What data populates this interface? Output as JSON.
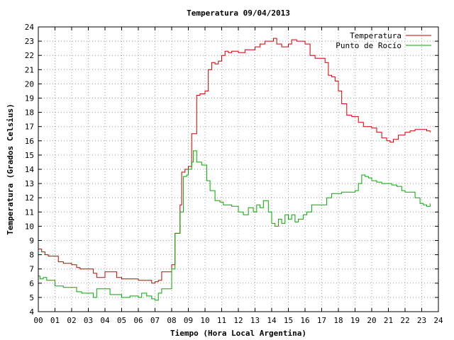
{
  "chart_data": {
    "type": "line",
    "title": "Temperatura 09/04/2013",
    "xlabel": "Tiempo (Hora Local Argentina)",
    "ylabel": "Temperatura (Grados Celsius)",
    "xlim": [
      0,
      24
    ],
    "ylim": [
      4,
      24
    ],
    "x_ticks": [
      0,
      1,
      2,
      3,
      4,
      5,
      6,
      7,
      8,
      9,
      10,
      11,
      12,
      13,
      14,
      15,
      16,
      17,
      18,
      19,
      20,
      21,
      22,
      23,
      24
    ],
    "x_tick_labels": [
      "00",
      "01",
      "02",
      "03",
      "04",
      "05",
      "06",
      "07",
      "08",
      "09",
      "10",
      "11",
      "12",
      "13",
      "14",
      "15",
      "16",
      "17",
      "18",
      "19",
      "20",
      "21",
      "22",
      "23",
      "24"
    ],
    "y_ticks": [
      4,
      5,
      6,
      7,
      8,
      9,
      10,
      11,
      12,
      13,
      14,
      15,
      16,
      17,
      18,
      19,
      20,
      21,
      22,
      23,
      24
    ],
    "grid": true,
    "legend_position": "top-right",
    "series": [
      {
        "name": "Temperatura",
        "color": "#cc0000",
        "x": [
          0,
          0.2,
          0.4,
          0.6,
          1.0,
          1.2,
          1.5,
          2.0,
          2.3,
          2.5,
          3.0,
          3.3,
          3.5,
          4.0,
          4.4,
          4.7,
          5.0,
          5.5,
          6.0,
          6.5,
          6.8,
          7.0,
          7.2,
          7.4,
          7.8,
          8.0,
          8.2,
          8.5,
          8.6,
          8.8,
          9.0,
          9.2,
          9.5,
          9.7,
          10.0,
          10.2,
          10.4,
          10.6,
          10.8,
          11.0,
          11.2,
          11.4,
          11.6,
          12.0,
          12.4,
          12.8,
          13.0,
          13.3,
          13.6,
          13.9,
          14.1,
          14.3,
          14.6,
          15.0,
          15.2,
          15.5,
          16.0,
          16.3,
          16.6,
          17.0,
          17.2,
          17.4,
          17.6,
          17.8,
          18.0,
          18.2,
          18.5,
          18.8,
          19.2,
          19.5,
          20.0,
          20.3,
          20.6,
          20.9,
          21.1,
          21.3,
          21.6,
          22.0,
          22.3,
          22.6,
          23.0,
          23.3,
          23.5
        ],
        "y": [
          8.4,
          8.2,
          8.0,
          7.9,
          7.9,
          7.5,
          7.4,
          7.3,
          7.1,
          7.0,
          7.0,
          6.7,
          6.4,
          6.8,
          6.8,
          6.4,
          6.3,
          6.3,
          6.2,
          6.2,
          6.0,
          6.1,
          6.2,
          6.8,
          6.8,
          7.3,
          9.5,
          11.5,
          13.8,
          14.0,
          14.2,
          16.5,
          19.2,
          19.3,
          19.5,
          21.0,
          21.5,
          21.4,
          21.6,
          22.0,
          22.3,
          22.2,
          22.3,
          22.2,
          22.4,
          22.4,
          22.6,
          22.8,
          23.0,
          23.0,
          23.2,
          22.8,
          22.6,
          22.8,
          23.1,
          23.0,
          22.8,
          22.0,
          21.8,
          21.8,
          21.5,
          20.6,
          20.5,
          20.2,
          19.5,
          18.6,
          17.8,
          17.7,
          17.3,
          17.0,
          16.9,
          16.6,
          16.2,
          16.0,
          15.9,
          16.1,
          16.4,
          16.6,
          16.7,
          16.8,
          16.8,
          16.7,
          16.6
        ]
      },
      {
        "name": "Punto de Rocío",
        "color": "#00aa00",
        "x": [
          0,
          0.1,
          0.3,
          0.5,
          1.0,
          1.2,
          1.5,
          2.0,
          2.3,
          2.6,
          3.0,
          3.3,
          3.5,
          4.0,
          4.3,
          4.6,
          5.0,
          5.3,
          5.5,
          6.0,
          6.2,
          6.5,
          6.8,
          7.0,
          7.2,
          7.4,
          7.8,
          8.0,
          8.2,
          8.5,
          8.7,
          8.9,
          9.0,
          9.2,
          9.3,
          9.5,
          9.8,
          10.0,
          10.1,
          10.3,
          10.6,
          10.9,
          11.1,
          11.3,
          11.6,
          12.0,
          12.3,
          12.6,
          12.9,
          13.1,
          13.3,
          13.5,
          13.8,
          14.0,
          14.2,
          14.4,
          14.6,
          14.8,
          15.0,
          15.2,
          15.4,
          15.6,
          15.9,
          16.1,
          16.4,
          16.7,
          17.0,
          17.3,
          17.6,
          17.9,
          18.2,
          18.5,
          18.8,
          19.0,
          19.2,
          19.4,
          19.6,
          19.8,
          20.0,
          20.3,
          20.6,
          20.9,
          21.2,
          21.5,
          21.8,
          22.0,
          22.3,
          22.6,
          22.9,
          23.1,
          23.3,
          23.5
        ],
        "y": [
          6.5,
          6.3,
          6.4,
          6.2,
          5.8,
          5.8,
          5.7,
          5.7,
          5.4,
          5.3,
          5.3,
          5.0,
          5.6,
          5.6,
          5.2,
          5.2,
          5.0,
          5.0,
          5.1,
          5.0,
          5.3,
          5.1,
          4.9,
          4.8,
          5.3,
          5.6,
          5.6,
          7.0,
          9.5,
          11.0,
          13.5,
          13.6,
          14.0,
          14.5,
          15.3,
          14.5,
          14.3,
          14.3,
          13.2,
          12.5,
          11.8,
          11.7,
          11.5,
          11.5,
          11.4,
          11.0,
          10.8,
          11.3,
          11.0,
          11.5,
          11.3,
          11.8,
          11.0,
          10.2,
          10.0,
          10.5,
          10.2,
          10.8,
          10.5,
          10.8,
          10.3,
          10.5,
          10.8,
          11.0,
          11.5,
          11.5,
          11.5,
          12.0,
          12.3,
          12.3,
          12.4,
          12.4,
          12.4,
          12.5,
          13.0,
          13.6,
          13.5,
          13.4,
          13.2,
          13.1,
          13.0,
          13.0,
          12.9,
          12.8,
          12.5,
          12.4,
          12.4,
          12.0,
          11.6,
          11.5,
          11.4,
          11.6
        ]
      }
    ]
  }
}
